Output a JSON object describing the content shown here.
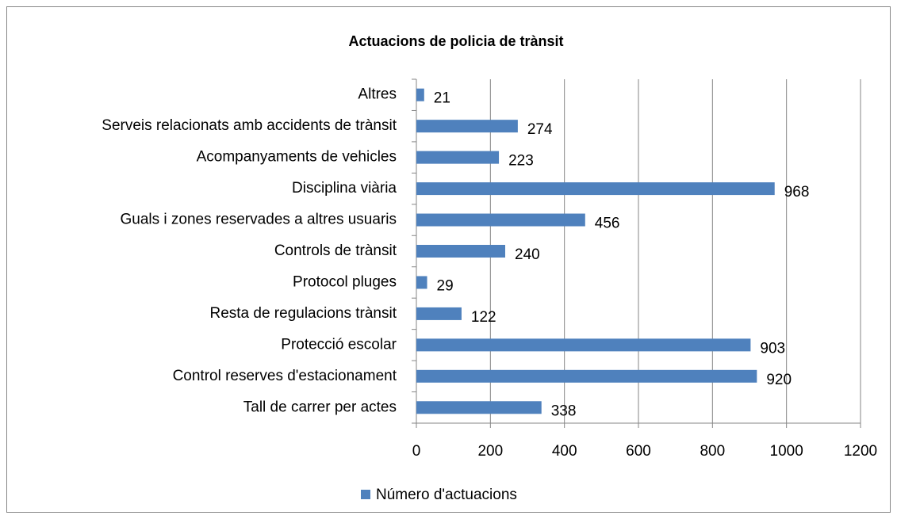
{
  "chart_data": {
    "type": "bar",
    "orientation": "horizontal",
    "title": "Actuacions de policia de trànsit",
    "categories": [
      "Altres",
      "Serveis relacionats amb accidents de trànsit",
      "Acompanyaments de vehicles",
      "Disciplina viària",
      "Guals i zones reservades a altres usuaris",
      "Controls de trànsit",
      "Protocol pluges",
      "Resta de regulacions trànsit",
      "Protecció escolar",
      "Control reserves d'estacionament",
      "Tall de carrer per actes"
    ],
    "series": [
      {
        "name": "Número d'actuacions",
        "color": "#4f81bd",
        "values": [
          21,
          274,
          223,
          968,
          456,
          240,
          29,
          122,
          903,
          920,
          338
        ]
      }
    ],
    "xlim": [
      0,
      1200
    ],
    "xticks": [
      0,
      200,
      400,
      600,
      800,
      1000,
      1200
    ],
    "grid": true,
    "legend": "bottom"
  }
}
